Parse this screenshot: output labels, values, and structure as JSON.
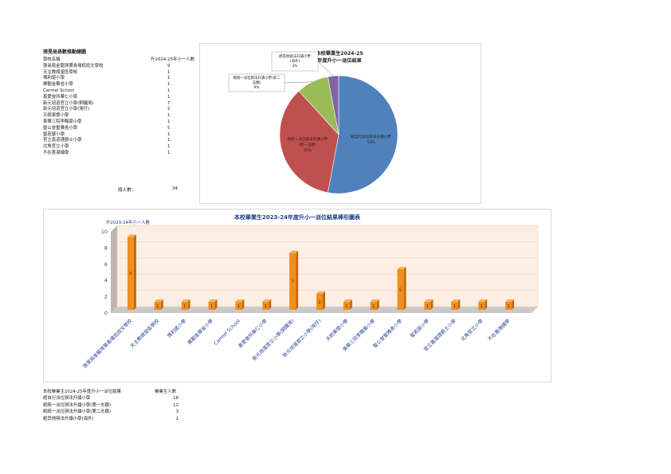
{
  "table": {
    "title": "張旻局孫數推動總圖",
    "header_school": "學校名稱",
    "header_count": "升2024-25年小一人數",
    "rows": [
      {
        "name": "張旻局金龍灣第島場低班文學校",
        "count": "9"
      },
      {
        "name": "天主教總堂區學校",
        "count": "1"
      },
      {
        "name": "瑪利諾小學",
        "count": "1"
      },
      {
        "name": "樂觀金華省小學",
        "count": "1"
      },
      {
        "name": "Carmel School",
        "count": "1"
      },
      {
        "name": "喜愛會所華仁小學",
        "count": "1"
      },
      {
        "name": "新元培道官立小學(銅鑼灣)",
        "count": "7"
      },
      {
        "name": "新元培道官立小學(灣仔)",
        "count": "2"
      },
      {
        "name": "天統東懷小學",
        "count": "1"
      },
      {
        "name": "東華三院李賜豪小學",
        "count": "1"
      },
      {
        "name": "聖公會聖雅各小學",
        "count": "5"
      },
      {
        "name": "聖若瑟小學",
        "count": "1"
      },
      {
        "name": "官立嘉道理爵士小學",
        "count": "1"
      },
      {
        "name": "北角官立小學",
        "count": "1"
      },
      {
        "name": "不在香港讀學",
        "count": "1"
      }
    ],
    "total_label": "總人數：",
    "total_value": "34"
  },
  "bottom_table": {
    "title": "本校畢業生2024-25年度升小一派位結果",
    "header_count": "畢業生人數",
    "rows": [
      {
        "label": "經自行派位辦法升讀小學",
        "count": "18"
      },
      {
        "label": "統統一派位辦法升讀小學(第一志願)",
        "count": "12"
      },
      {
        "label": "統統一派位辦法升讀小學(第二志願)",
        "count": "3"
      },
      {
        "label": "經其他辦法升讀小學(海外)",
        "count": "1"
      }
    ]
  },
  "chart_data": [
    {
      "type": "pie",
      "title": "本校畢業生2024-25年度升小一派位結果",
      "labels": [
        "經自行派位辦法升讀小學，53%",
        "統統一派位辦法升讀小學(第一志願)，35%",
        "統統一派位辦法升讀小學(第二志願)，9%",
        "經其他辦法升讀小學(海外)，3%"
      ],
      "values": [
        18,
        12,
        3,
        1
      ],
      "percents": [
        "53%",
        "35%",
        "9%",
        "3%"
      ],
      "colors": [
        "#4f81bd",
        "#c0504d",
        "#9bbb59",
        "#8064a2"
      ]
    },
    {
      "type": "bar",
      "title": "本校畢業生2023-24年度升小一派位結果棒形圖表",
      "ylabel": "升2023-24年小一人數",
      "ylim": [
        0,
        10
      ],
      "yticks": [
        0,
        2,
        4,
        6,
        8,
        10
      ],
      "categories": [
        "張旻局金龍灣第島場低班文學校",
        "天主教總堂區學校",
        "瑪利諾小學",
        "樂觀金華省小學",
        "Carmel School",
        "喜愛會所華仁小學",
        "新元培道官立小學(銅鑼灣)",
        "新元培道官立小學(灣仔)",
        "天統東懷小學",
        "東華三院李賜豪小學",
        "聖公會聖雅各小學",
        "聖若瑟小學",
        "官立嘉道理爵士小學",
        "北角官立小學",
        "不在香港讀學"
      ],
      "values": [
        9,
        1,
        1,
        1,
        1,
        1,
        7,
        2,
        1,
        1,
        5,
        1,
        1,
        1,
        1
      ],
      "bar_color": "#f28e1c",
      "plot_bg": "#fdeee3",
      "axis_color": "#4f6fb0"
    }
  ]
}
